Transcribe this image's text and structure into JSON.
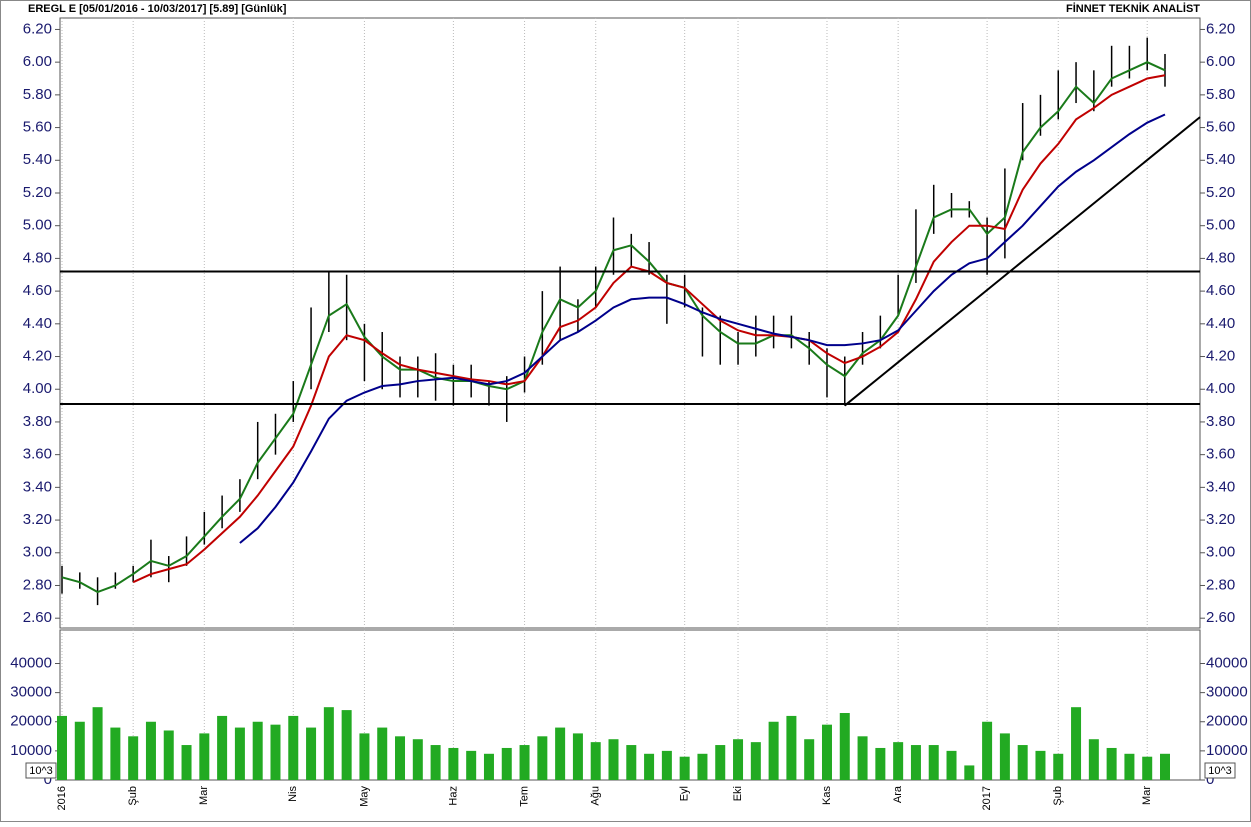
{
  "chart_data": [
    {
      "type": "ohlc",
      "title": "EREGL E  [05/01/2016 - 10/03/2017]  [5.89]  [Günlük]",
      "subtitle": "FİNNET TEKNİK ANALİST",
      "categories": [
        "2016",
        null,
        null,
        null,
        "Şub",
        null,
        null,
        null,
        "Mar",
        null,
        null,
        null,
        null,
        "Nis",
        null,
        null,
        null,
        "May",
        null,
        null,
        null,
        null,
        "Haz",
        null,
        null,
        null,
        "Tem",
        null,
        null,
        null,
        "Ağu",
        null,
        null,
        null,
        null,
        "Eyl",
        null,
        null,
        "Eki",
        null,
        null,
        null,
        null,
        "Kas",
        null,
        null,
        null,
        "Ara",
        null,
        null,
        null,
        null,
        "2017",
        null,
        null,
        null,
        "Şub",
        null,
        null,
        null,
        null,
        "Mar",
        null
      ],
      "high": [
        2.92,
        2.88,
        2.85,
        2.88,
        2.92,
        3.08,
        2.98,
        3.1,
        3.25,
        3.35,
        3.45,
        3.8,
        3.85,
        4.05,
        4.5,
        4.72,
        4.7,
        4.4,
        4.35,
        4.2,
        4.2,
        4.22,
        4.15,
        4.15,
        4.05,
        4.08,
        4.2,
        4.6,
        4.75,
        4.55,
        4.75,
        5.05,
        4.95,
        4.9,
        4.7,
        4.7,
        4.5,
        4.45,
        4.35,
        4.45,
        4.45,
        4.45,
        4.35,
        4.25,
        4.2,
        4.35,
        4.45,
        4.7,
        5.1,
        5.25,
        5.2,
        5.15,
        5.05,
        5.35,
        5.75,
        5.8,
        5.95,
        6.0,
        5.95,
        6.1,
        6.1,
        6.15,
        6.05
      ],
      "low": [
        2.75,
        2.78,
        2.68,
        2.78,
        2.82,
        2.85,
        2.82,
        2.92,
        3.05,
        3.15,
        3.25,
        3.45,
        3.6,
        3.8,
        4.0,
        4.35,
        4.3,
        4.05,
        4.0,
        3.95,
        3.95,
        3.93,
        3.9,
        3.95,
        3.9,
        3.8,
        3.98,
        4.15,
        4.3,
        4.35,
        4.5,
        4.7,
        4.75,
        4.7,
        4.4,
        4.5,
        4.2,
        4.15,
        4.15,
        4.2,
        4.25,
        4.25,
        4.15,
        3.95,
        3.9,
        4.15,
        4.25,
        4.45,
        4.65,
        4.95,
        5.05,
        5.05,
        4.7,
        4.8,
        5.4,
        5.55,
        5.65,
        5.75,
        5.7,
        5.85,
        5.9,
        5.95,
        5.85
      ],
      "bar_color": "#000000",
      "series": [
        {
          "color": "#1a7a1a",
          "values": [
            2.85,
            2.82,
            2.76,
            2.8,
            2.87,
            2.95,
            2.92,
            2.98,
            3.1,
            3.22,
            3.33,
            3.55,
            3.7,
            3.85,
            4.15,
            4.45,
            4.52,
            4.32,
            4.2,
            4.12,
            4.12,
            4.07,
            4.05,
            4.05,
            4.02,
            4.0,
            4.05,
            4.35,
            4.55,
            4.5,
            4.6,
            4.85,
            4.88,
            4.78,
            4.65,
            4.62,
            4.45,
            4.35,
            4.28,
            4.28,
            4.33,
            4.33,
            4.25,
            4.15,
            4.08,
            4.22,
            4.3,
            4.45,
            4.75,
            5.05,
            5.1,
            5.1,
            4.95,
            5.05,
            5.45,
            5.6,
            5.7,
            5.85,
            5.75,
            5.9,
            5.95,
            6.0,
            5.95
          ]
        },
        {
          "color": "#c00000",
          "values": [
            null,
            null,
            null,
            null,
            2.82,
            2.87,
            2.9,
            2.93,
            3.02,
            3.12,
            3.22,
            3.35,
            3.5,
            3.65,
            3.9,
            4.2,
            4.33,
            4.3,
            4.22,
            4.15,
            4.12,
            4.1,
            4.08,
            4.06,
            4.05,
            4.03,
            4.05,
            4.2,
            4.38,
            4.42,
            4.5,
            4.65,
            4.75,
            4.72,
            4.65,
            4.62,
            4.52,
            4.42,
            4.36,
            4.33,
            4.33,
            4.32,
            4.3,
            4.22,
            4.16,
            4.2,
            4.26,
            4.35,
            4.55,
            4.78,
            4.9,
            5.0,
            5.0,
            4.98,
            5.22,
            5.38,
            5.5,
            5.65,
            5.72,
            5.8,
            5.85,
            5.9,
            5.92
          ]
        },
        {
          "color": "#00008b",
          "values": [
            null,
            null,
            null,
            null,
            null,
            null,
            null,
            null,
            null,
            null,
            3.06,
            3.15,
            3.28,
            3.43,
            3.62,
            3.82,
            3.93,
            3.98,
            4.02,
            4.03,
            4.05,
            4.06,
            4.07,
            4.05,
            4.03,
            4.05,
            4.1,
            4.2,
            4.3,
            4.35,
            4.42,
            4.5,
            4.55,
            4.56,
            4.56,
            4.52,
            4.47,
            4.43,
            4.4,
            4.37,
            4.34,
            4.32,
            4.3,
            4.27,
            4.27,
            4.28,
            4.3,
            4.36,
            4.48,
            4.6,
            4.7,
            4.77,
            4.8,
            4.9,
            5.0,
            5.12,
            5.24,
            5.33,
            5.4,
            5.48,
            5.56,
            5.63,
            5.68
          ]
        }
      ],
      "hlines": [
        4.72,
        3.91
      ],
      "trendline": {
        "start": {
          "category": 44,
          "value": 3.9
        },
        "end": {
          "category": 62,
          "value": 5.49
        }
      },
      "ylim": [
        2.54,
        6.27
      ],
      "yticks": [
        {
          "value": 2.6,
          "label": "2.60"
        },
        {
          "value": 2.8,
          "label": "2.80"
        },
        {
          "value": 3.0,
          "label": "3.00"
        },
        {
          "value": 3.2,
          "label": "3.20"
        },
        {
          "value": 3.4,
          "label": "3.40"
        },
        {
          "value": 3.6,
          "label": "3.60"
        },
        {
          "value": 3.8,
          "label": "3.80"
        },
        {
          "value": 4.0,
          "label": "4.00"
        },
        {
          "value": 4.2,
          "label": "4.20"
        },
        {
          "value": 4.4,
          "label": "4.40"
        },
        {
          "value": 4.6,
          "label": "4.60"
        },
        {
          "value": 4.8,
          "label": "4.80"
        },
        {
          "value": 5.0,
          "label": "5.00"
        },
        {
          "value": 5.2,
          "label": "5.20"
        },
        {
          "value": 5.4,
          "label": "5.40"
        },
        {
          "value": 5.6,
          "label": "5.60"
        },
        {
          "value": 5.8,
          "label": "5.80"
        },
        {
          "value": 6.0,
          "label": "6.00"
        },
        {
          "value": 6.2,
          "label": "6.20"
        }
      ],
      "grid": "x"
    },
    {
      "type": "bar",
      "unit_label": "10^3",
      "color": "#22aa22",
      "values": [
        22000,
        20000,
        25000,
        18000,
        15000,
        20000,
        17000,
        12000,
        16000,
        22000,
        18000,
        20000,
        19000,
        22000,
        18000,
        25000,
        24000,
        16000,
        18000,
        15000,
        14000,
        12000,
        11000,
        10000,
        9000,
        11000,
        12000,
        15000,
        18000,
        16000,
        13000,
        14000,
        12000,
        9000,
        10000,
        8000,
        9000,
        12000,
        14000,
        13000,
        20000,
        22000,
        14000,
        19000,
        23000,
        15000,
        11000,
        13000,
        12000,
        12000,
        10000,
        5000,
        20000,
        16000,
        12000,
        10000,
        9000,
        25000,
        14000,
        11000,
        9000,
        8000,
        9000
      ],
      "ylim": [
        0,
        51500
      ],
      "yticks": [
        0,
        10000,
        20000,
        30000,
        40000
      ]
    }
  ]
}
